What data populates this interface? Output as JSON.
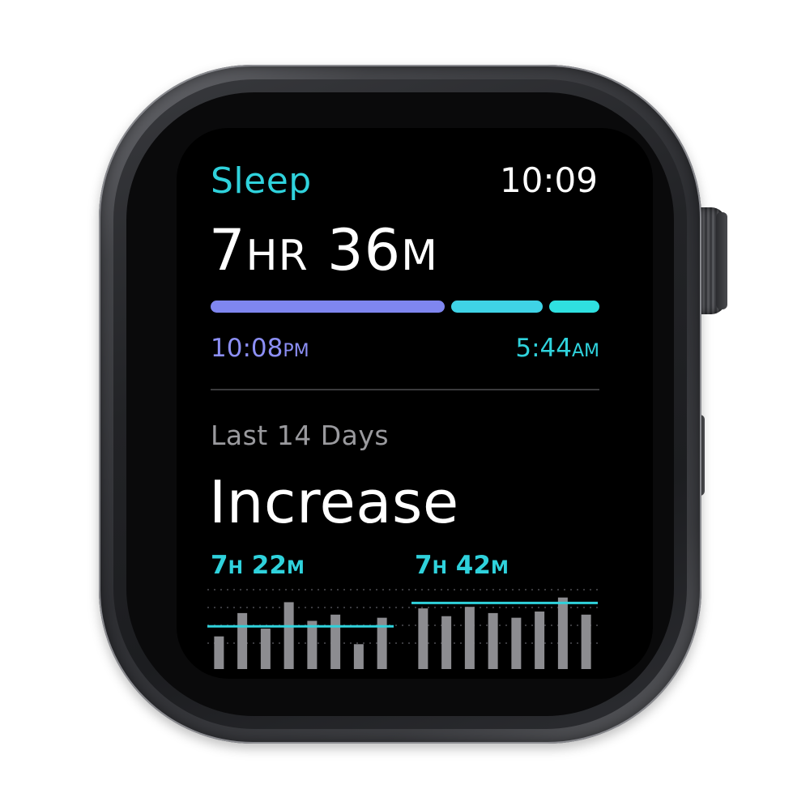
{
  "app": {
    "title": "Sleep",
    "clock": "10:09"
  },
  "summary": {
    "duration_hours": "7",
    "duration_hours_unit": "HR",
    "duration_minutes": "36",
    "duration_minutes_unit": "M",
    "segments": [
      {
        "fraction": 0.61,
        "color": "#7f86f0"
      },
      {
        "fraction": 0.24,
        "color": "#3fd3e6"
      },
      {
        "fraction": 0.13,
        "color": "#2fe0e0"
      }
    ],
    "start_time": "10:08",
    "start_ampm": "PM",
    "end_time": "5:44",
    "end_ampm": "AM",
    "start_color": "#8c8ff5",
    "end_color": "#2fd2dc"
  },
  "trend": {
    "period": "Last 14 Days",
    "status": "Increase",
    "previous_avg_hours": "7",
    "previous_avg_hours_unit": "H",
    "previous_avg_minutes": "22",
    "previous_avg_minutes_unit": "M",
    "recent_avg_hours": "7",
    "recent_avg_hours_unit": "H",
    "recent_avg_minutes": "42",
    "recent_avg_minutes_unit": "M",
    "accent_color": "#2fd2dc",
    "bar_color": "#8c8c90"
  },
  "chart_data": {
    "type": "bar",
    "description_scale": "relative sleep duration per night, 0-1",
    "previous_week": [
      0.42,
      0.72,
      0.52,
      0.86,
      0.62,
      0.7,
      0.32,
      0.66
    ],
    "recent_week": [
      0.78,
      0.68,
      0.8,
      0.72,
      0.66,
      0.74,
      0.92,
      0.7
    ],
    "previous_avg": 0.55,
    "recent_avg": 0.85
  }
}
